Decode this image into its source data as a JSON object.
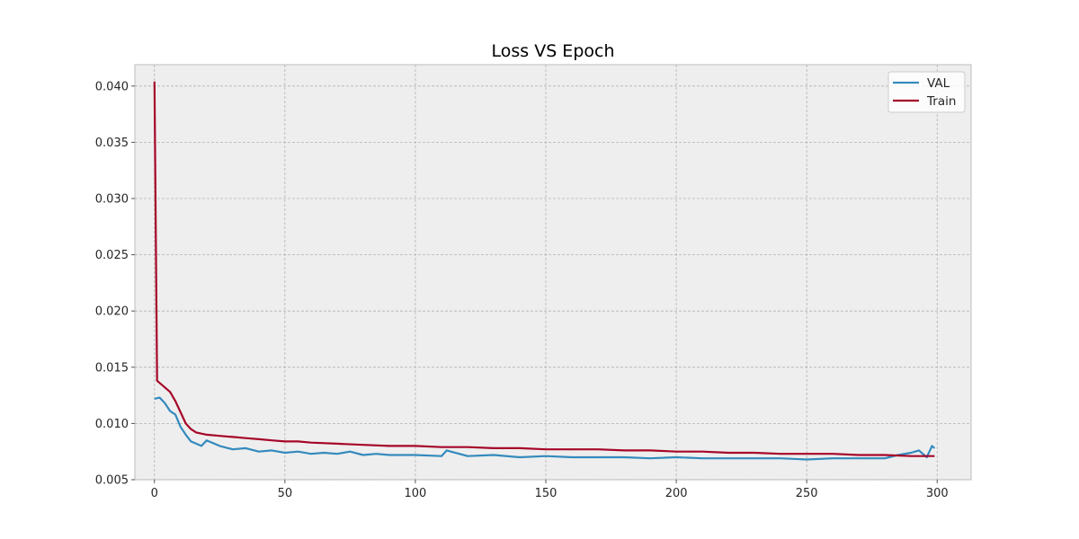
{
  "chart_data": {
    "type": "line",
    "title": "Loss VS Epoch",
    "xlabel": "",
    "ylabel": "",
    "xlim": [
      -7.5,
      313
    ],
    "ylim": [
      0.005,
      0.0419
    ],
    "xticks": [
      0,
      50,
      100,
      150,
      200,
      250,
      300
    ],
    "xtick_labels": [
      "0",
      "50",
      "100",
      "150",
      "200",
      "250",
      "300"
    ],
    "yticks": [
      0.005,
      0.01,
      0.015,
      0.02,
      0.025,
      0.03,
      0.035,
      0.04
    ],
    "ytick_labels": [
      "0.005",
      "0.010",
      "0.015",
      "0.020",
      "0.025",
      "0.030",
      "0.035",
      "0.040"
    ],
    "grid": true,
    "legend": "top-right",
    "series": [
      {
        "name": "VAL",
        "color": "#348ABD",
        "x": [
          0,
          2,
          4,
          6,
          8,
          10,
          12,
          14,
          16,
          18,
          20,
          25,
          30,
          35,
          40,
          45,
          50,
          55,
          60,
          65,
          70,
          75,
          80,
          85,
          90,
          95,
          100,
          110,
          112,
          120,
          130,
          140,
          150,
          160,
          170,
          180,
          190,
          200,
          210,
          220,
          230,
          240,
          250,
          260,
          270,
          280,
          285,
          290,
          293,
          296,
          298,
          299
        ],
        "y": [
          0.0122,
          0.0123,
          0.0118,
          0.0111,
          0.0108,
          0.0097,
          0.009,
          0.0084,
          0.0082,
          0.008,
          0.0085,
          0.008,
          0.0077,
          0.0078,
          0.0075,
          0.0076,
          0.0074,
          0.0075,
          0.0073,
          0.0074,
          0.0073,
          0.0075,
          0.0072,
          0.0073,
          0.0072,
          0.0072,
          0.0072,
          0.0071,
          0.0076,
          0.0071,
          0.0072,
          0.007,
          0.0071,
          0.007,
          0.007,
          0.007,
          0.0069,
          0.007,
          0.0069,
          0.0069,
          0.0069,
          0.0069,
          0.0068,
          0.0069,
          0.0069,
          0.0069,
          0.0072,
          0.0074,
          0.0076,
          0.007,
          0.008,
          0.0078
        ]
      },
      {
        "name": "Train",
        "color": "#A60628",
        "x": [
          0,
          1,
          2,
          4,
          6,
          8,
          10,
          12,
          14,
          16,
          18,
          20,
          25,
          30,
          35,
          40,
          45,
          50,
          55,
          60,
          70,
          80,
          90,
          100,
          110,
          120,
          130,
          140,
          150,
          160,
          170,
          180,
          190,
          200,
          210,
          220,
          230,
          240,
          250,
          260,
          270,
          280,
          290,
          295,
          299
        ],
        "y": [
          0.0404,
          0.0138,
          0.0136,
          0.0132,
          0.0128,
          0.012,
          0.011,
          0.01,
          0.0095,
          0.0092,
          0.0091,
          0.009,
          0.0089,
          0.0088,
          0.0087,
          0.0086,
          0.0085,
          0.0084,
          0.0084,
          0.0083,
          0.0082,
          0.0081,
          0.008,
          0.008,
          0.0079,
          0.0079,
          0.0078,
          0.0078,
          0.0077,
          0.0077,
          0.0077,
          0.0076,
          0.0076,
          0.0075,
          0.0075,
          0.0074,
          0.0074,
          0.0073,
          0.0073,
          0.0073,
          0.0072,
          0.0072,
          0.0071,
          0.0071,
          0.0071
        ]
      }
    ]
  }
}
